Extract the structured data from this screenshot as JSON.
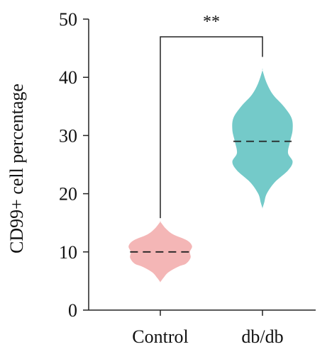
{
  "chart_data": {
    "type": "violin",
    "ylabel": "CD99+ cell percentage",
    "xlabel": "",
    "ylim": [
      0,
      50
    ],
    "yticks": [
      0,
      10,
      20,
      30,
      40,
      50
    ],
    "grid": false,
    "categories": [
      "Control",
      "db/db"
    ],
    "series": [
      {
        "category": "Control",
        "color": "#f4b6b6",
        "min": 4.8,
        "max": 15.2,
        "median": 10,
        "profile": [
          [
            4.8,
            0.0
          ],
          [
            5.5,
            0.08
          ],
          [
            6.5,
            0.22
          ],
          [
            7.5,
            0.5
          ],
          [
            8.0,
            0.7
          ],
          [
            9.0,
            0.82
          ],
          [
            10.0,
            0.8
          ],
          [
            11.0,
            0.86
          ],
          [
            12.0,
            0.72
          ],
          [
            13.0,
            0.35
          ],
          [
            14.0,
            0.15
          ],
          [
            15.2,
            0.0
          ]
        ]
      },
      {
        "category": "db/db",
        "color": "#74cac9",
        "min": 17.5,
        "max": 41.2,
        "median": 29,
        "profile": [
          [
            17.5,
            0.0
          ],
          [
            18.5,
            0.05
          ],
          [
            20.0,
            0.12
          ],
          [
            22.0,
            0.35
          ],
          [
            24.0,
            0.72
          ],
          [
            25.5,
            0.85
          ],
          [
            27.0,
            0.72
          ],
          [
            29.0,
            0.78
          ],
          [
            31.0,
            0.85
          ],
          [
            33.0,
            0.82
          ],
          [
            35.0,
            0.6
          ],
          [
            37.0,
            0.3
          ],
          [
            39.0,
            0.12
          ],
          [
            41.2,
            0.0
          ]
        ]
      }
    ],
    "significance": {
      "label": "**",
      "between": [
        "Control",
        "db/db"
      ]
    }
  }
}
